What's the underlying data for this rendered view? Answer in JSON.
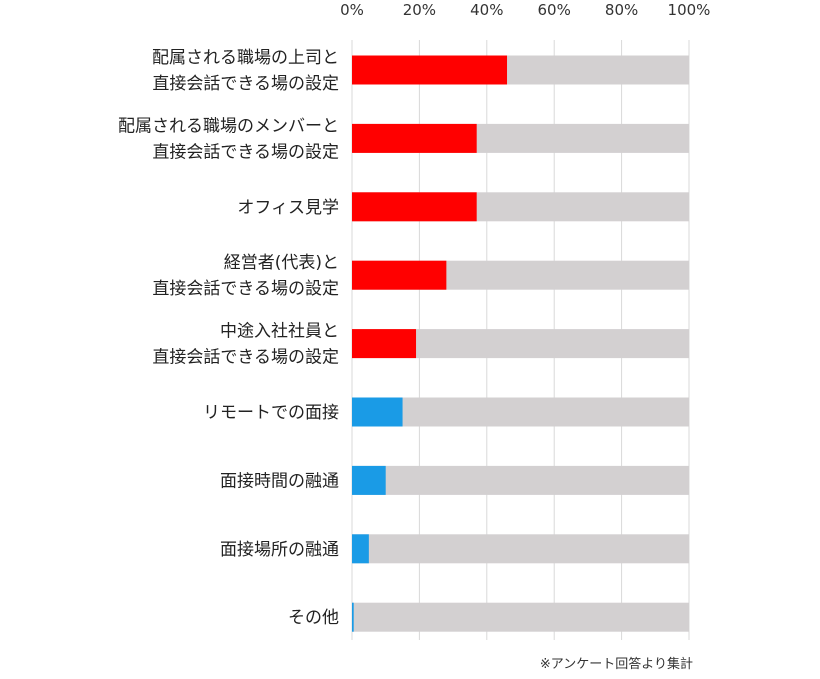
{
  "chart_data": {
    "type": "bar",
    "orientation": "horizontal",
    "stacked_percent": true,
    "categories": [
      [
        "配属される職場の上司と",
        "直接会話できる場の設定"
      ],
      [
        "配属される職場のメンバーと",
        "直接会話できる場の設定"
      ],
      [
        "オフィス見学"
      ],
      [
        "経営者(代表)と",
        "直接会話できる場の設定"
      ],
      [
        "中途入社社員と",
        "直接会話できる場の設定"
      ],
      [
        "リモートでの面接"
      ],
      [
        "面接時間の融通"
      ],
      [
        "面接場所の融通"
      ],
      [
        "その他"
      ]
    ],
    "values": [
      46,
      37,
      37,
      28,
      19,
      15,
      10,
      5,
      0.5
    ],
    "bar_colors": [
      "#ff0000",
      "#ff0000",
      "#ff0000",
      "#ff0000",
      "#ff0000",
      "#1a9be6",
      "#1a9be6",
      "#1a9be6",
      "#1a9be6"
    ],
    "remainder_color": "#d3d0d1",
    "xlim": [
      0,
      100
    ],
    "x_ticks": [
      0,
      20,
      40,
      60,
      80,
      100
    ],
    "x_tick_labels": [
      "0%",
      "20%",
      "40%",
      "60%",
      "80%",
      "100%"
    ],
    "grid": true,
    "note": "※アンケート回答より集計"
  }
}
